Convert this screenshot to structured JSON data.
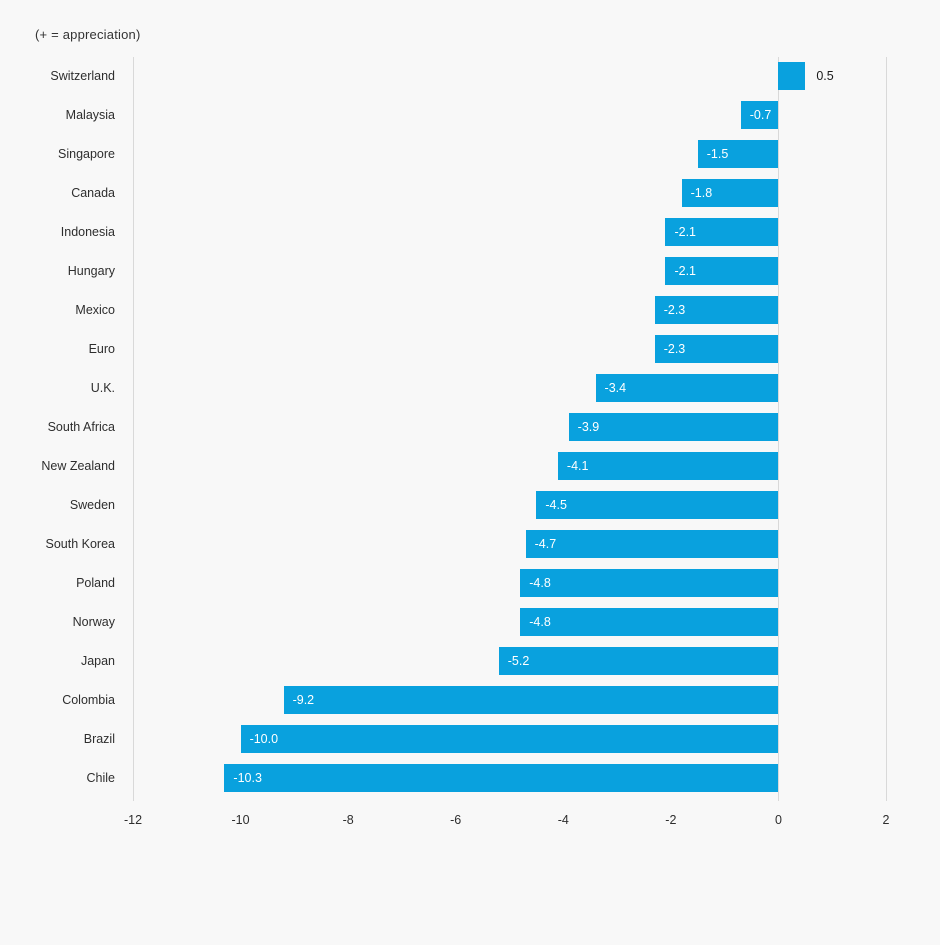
{
  "note": "(+ = appreciation)",
  "chart_data": {
    "type": "bar",
    "orientation": "horizontal",
    "title": "",
    "xlabel": "",
    "ylabel": "",
    "categories": [
      "Switzerland",
      "Malaysia",
      "Singapore",
      "Canada",
      "Indonesia",
      "Hungary",
      "Mexico",
      "Euro",
      "U.K.",
      "South Africa",
      "New Zealand",
      "Sweden",
      "South Korea",
      "Poland",
      "Norway",
      "Japan",
      "Colombia",
      "Brazil",
      "Chile"
    ],
    "values": [
      0.5,
      -0.7,
      -1.5,
      -1.8,
      -2.1,
      -2.1,
      -2.3,
      -2.3,
      -3.4,
      -3.9,
      -4.1,
      -4.5,
      -4.7,
      -4.8,
      -4.8,
      -5.2,
      -9.2,
      -10.0,
      -10.3
    ],
    "value_labels": [
      "0.5",
      "-0.7",
      "-1.5",
      "-1.8",
      "-2.1",
      "-2.1",
      "-2.3",
      "-2.3",
      "-3.4",
      "-3.9",
      "-4.1",
      "-4.5",
      "-4.7",
      "-4.8",
      "-4.8",
      "-5.2",
      "-9.2",
      "-10.0",
      "-10.3"
    ],
    "xlim": [
      -12,
      2
    ],
    "x_ticks": [
      "-12",
      "-10",
      "-8",
      "-6",
      "-4",
      "-2",
      "0",
      "2"
    ],
    "x_tick_values": [
      -12,
      -10,
      -8,
      -6,
      -4,
      -2,
      0,
      2
    ],
    "gridlines_at": [
      -12,
      0,
      2
    ],
    "grid": "vertical-edges-and-zero-only",
    "legend": "none",
    "colors": {
      "bar": "#09a1de",
      "background": "#f8f8f8",
      "gridline": "#d9d9d9",
      "axis_text": "#2e2e2e",
      "label_inside_bar": "#ffffff",
      "label_outside_bar": "#1a1a1a"
    }
  }
}
